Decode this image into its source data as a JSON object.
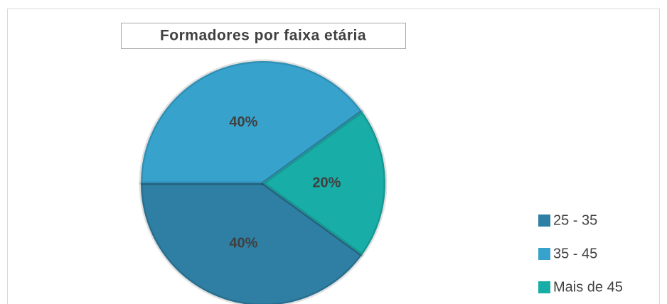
{
  "chart_data": {
    "type": "pie",
    "title": "Formadores por faixa etária",
    "categories": [
      "25 - 35",
      "35 - 45",
      "Mais de 45"
    ],
    "values": [
      40,
      40,
      20
    ],
    "value_labels": [
      "40%",
      "40%",
      "20%"
    ],
    "colors": [
      "#2e7fa3",
      "#37a3cd",
      "#19ada7"
    ],
    "legend": "right"
  }
}
